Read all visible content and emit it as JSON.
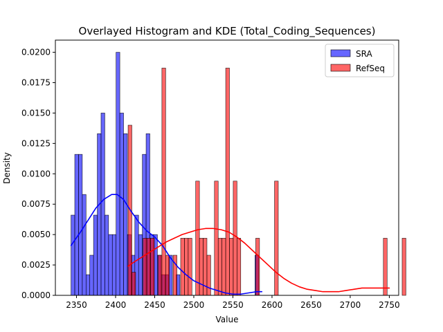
{
  "chart_data": {
    "type": "histogram",
    "title": "Overlayed Histogram and KDE (Total_Coding_Sequences)",
    "xlabel": "Value",
    "ylabel": "Density",
    "xlim": [
      2323,
      2762
    ],
    "ylim": [
      0,
      0.021
    ],
    "x_ticks": [
      2350,
      2400,
      2450,
      2500,
      2550,
      2600,
      2650,
      2700,
      2750
    ],
    "y_ticks": [
      0.0,
      0.0025,
      0.005,
      0.0075,
      0.01,
      0.0125,
      0.015,
      0.0175,
      0.02
    ],
    "y_tick_labels": [
      "0.0000",
      "0.0025",
      "0.0050",
      "0.0075",
      "0.0100",
      "0.0125",
      "0.0150",
      "0.0175",
      "0.0200"
    ],
    "grid": false,
    "legend_position": "top-right",
    "series": [
      {
        "name": "SRA",
        "color": "#0000ff",
        "bin_start": 2343,
        "bin_width": 4.8,
        "densities": [
          0.0066,
          0.0116,
          0.0116,
          0.0083,
          0.0017,
          0.0033,
          0.0066,
          0.0133,
          0.015,
          0.0066,
          0.005,
          0.005,
          0.02,
          0.015,
          0.0133,
          0.005,
          0.0033,
          0.0066,
          0.005,
          0.0116,
          0.0133,
          0.005,
          0.005,
          0.0033,
          0.0017,
          0.0017,
          0.0033,
          0.0,
          0.0017,
          0.0,
          0.0,
          0.0,
          0.0,
          0.0,
          0.0,
          0.0,
          0.0,
          0.0,
          0.0,
          0.0,
          0.0,
          0.0,
          0.0,
          0.0,
          0.0,
          0.0,
          0.0,
          0.0,
          0.0,
          0.0033
        ],
        "kde": {
          "x": [
            2343,
            2355,
            2365,
            2375,
            2385,
            2395,
            2402,
            2410,
            2420,
            2430,
            2440,
            2450,
            2460,
            2470,
            2480,
            2490,
            2500,
            2510,
            2520,
            2530,
            2540,
            2550,
            2560,
            2570,
            2580,
            2587
          ],
          "y": [
            0.0041,
            0.0052,
            0.0062,
            0.0072,
            0.0079,
            0.0083,
            0.0083,
            0.0079,
            0.0069,
            0.006,
            0.0053,
            0.0048,
            0.0041,
            0.0031,
            0.0023,
            0.0017,
            0.0012,
            0.0009,
            0.0006,
            0.0004,
            0.0002,
            0.0001,
            0.0001,
            0.0002,
            0.0003,
            0.0003
          ]
        }
      },
      {
        "name": "RefSeq",
        "color": "#ff0000",
        "bin_start": 2416,
        "bin_width": 4.8,
        "densities": [
          0.014,
          0.0019,
          0.0,
          0.0,
          0.0047,
          0.0047,
          0.0047,
          0.0,
          0.0033,
          0.0187,
          0.0033,
          0.0,
          0.0033,
          0.0,
          0.0047,
          0.0047,
          0.0047,
          0.0,
          0.0094,
          0.0047,
          0.0047,
          0.0033,
          0.0,
          0.0094,
          0.0047,
          0.0047,
          0.0187,
          0.0047,
          0.0094,
          0.0047,
          0.0,
          0.0,
          0.0,
          0.0,
          0.0047,
          0.0,
          0.0,
          0.0,
          0.0,
          0.0094,
          0.0,
          0.0,
          0.0,
          0.0,
          0.0,
          0.0,
          0.0,
          0.0,
          0.0,
          0.0,
          0.0,
          0.0,
          0.0,
          0.0,
          0.0,
          0.0,
          0.0,
          0.0,
          0.0,
          0.0,
          0.0,
          0.0,
          0.0,
          0.0,
          0.0,
          0.0,
          0.0,
          0.0,
          0.0047,
          0.0,
          0.0,
          0.0,
          0.0,
          0.0047
        ],
        "kde": {
          "x": [
            2416,
            2425,
            2435,
            2445,
            2455,
            2465,
            2475,
            2485,
            2495,
            2505,
            2515,
            2525,
            2535,
            2545,
            2555,
            2565,
            2575,
            2585,
            2595,
            2605,
            2615,
            2625,
            2635,
            2645,
            2655,
            2665,
            2675,
            2685,
            2695,
            2705,
            2715,
            2725,
            2735,
            2745,
            2750
          ],
          "y": [
            0.0024,
            0.0028,
            0.0032,
            0.0036,
            0.004,
            0.0044,
            0.0047,
            0.005,
            0.0052,
            0.0054,
            0.0055,
            0.0055,
            0.0054,
            0.0052,
            0.0048,
            0.0043,
            0.0037,
            0.0031,
            0.0025,
            0.0019,
            0.0014,
            0.001,
            0.0007,
            0.0005,
            0.0004,
            0.0003,
            0.0003,
            0.0003,
            0.0004,
            0.0005,
            0.0006,
            0.0006,
            0.0006,
            0.0006,
            0.0006
          ]
        }
      }
    ]
  }
}
